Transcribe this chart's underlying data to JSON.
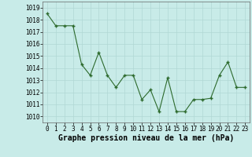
{
  "x": [
    0,
    1,
    2,
    3,
    4,
    5,
    6,
    7,
    8,
    9,
    10,
    11,
    12,
    13,
    14,
    15,
    16,
    17,
    18,
    19,
    20,
    21,
    22,
    23
  ],
  "y": [
    1018.5,
    1017.5,
    1017.5,
    1017.5,
    1014.3,
    1013.4,
    1015.3,
    1013.4,
    1012.4,
    1013.4,
    1013.4,
    1011.4,
    1012.2,
    1010.4,
    1013.2,
    1010.4,
    1010.4,
    1011.4,
    1011.4,
    1011.5,
    1013.4,
    1014.5,
    1012.4,
    1012.4
  ],
  "ylim": [
    1009.5,
    1019.5
  ],
  "yticks": [
    1010,
    1011,
    1012,
    1013,
    1014,
    1015,
    1016,
    1017,
    1018,
    1019
  ],
  "line_color": "#2d6a2d",
  "marker_color": "#2d6a2d",
  "bg_color": "#c8ebe8",
  "grid_color": "#b0d8d4",
  "xlabel": "Graphe pression niveau de la mer (hPa)",
  "xlabel_fontsize": 7.0,
  "tick_fontsize": 5.5,
  "figsize": [
    3.2,
    2.0
  ],
  "dpi": 100
}
